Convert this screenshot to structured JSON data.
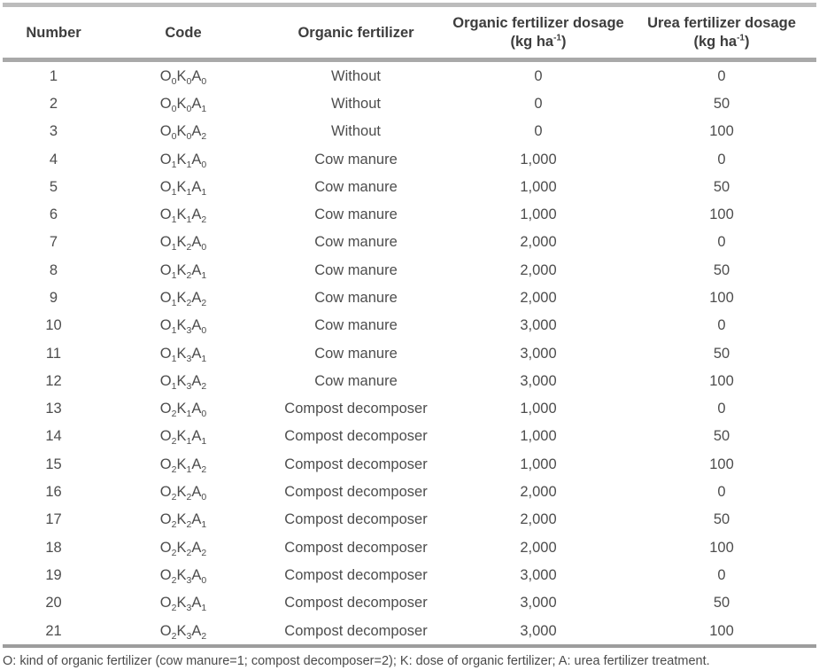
{
  "table": {
    "columns": [
      {
        "label": "Number"
      },
      {
        "label": "Code"
      },
      {
        "label": "Organic fertilizer"
      },
      {
        "label": "Organic fertilizer dosage",
        "unit_pre": "(kg ha",
        "unit_sup": "-1",
        "unit_post": ")"
      },
      {
        "label": "Urea fertilizer dosage",
        "unit_pre": "(kg ha",
        "unit_sup": "-1",
        "unit_post": ")"
      }
    ],
    "rows": [
      {
        "number": "1",
        "code": "O0K0A0",
        "organic_fertilizer": "Without",
        "organic_dosage": "0",
        "urea_dosage": "0"
      },
      {
        "number": "2",
        "code": "O0K0A1",
        "organic_fertilizer": "Without",
        "organic_dosage": "0",
        "urea_dosage": "50"
      },
      {
        "number": "3",
        "code": "O0K0A2",
        "organic_fertilizer": "Without",
        "organic_dosage": "0",
        "urea_dosage": "100"
      },
      {
        "number": "4",
        "code": "O1K1A0",
        "organic_fertilizer": "Cow manure",
        "organic_dosage": "1,000",
        "urea_dosage": "0"
      },
      {
        "number": "5",
        "code": "O1K1A1",
        "organic_fertilizer": "Cow manure",
        "organic_dosage": "1,000",
        "urea_dosage": "50"
      },
      {
        "number": "6",
        "code": "O1K1A2",
        "organic_fertilizer": "Cow manure",
        "organic_dosage": "1,000",
        "urea_dosage": "100"
      },
      {
        "number": "7",
        "code": "O1K2A0",
        "organic_fertilizer": "Cow manure",
        "organic_dosage": "2,000",
        "urea_dosage": "0"
      },
      {
        "number": "8",
        "code": "O1K2A1",
        "organic_fertilizer": "Cow manure",
        "organic_dosage": "2,000",
        "urea_dosage": "50"
      },
      {
        "number": "9",
        "code": "O1K2A2",
        "organic_fertilizer": "Cow manure",
        "organic_dosage": "2,000",
        "urea_dosage": "100"
      },
      {
        "number": "10",
        "code": "O1K3A0",
        "organic_fertilizer": "Cow manure",
        "organic_dosage": "3,000",
        "urea_dosage": "0"
      },
      {
        "number": "11",
        "code": "O1K3A1",
        "organic_fertilizer": "Cow manure",
        "organic_dosage": "3,000",
        "urea_dosage": "50"
      },
      {
        "number": "12",
        "code": "O1K3A2",
        "organic_fertilizer": "Cow manure",
        "organic_dosage": "3,000",
        "urea_dosage": "100"
      },
      {
        "number": "13",
        "code": "O2K1A0",
        "organic_fertilizer": "Compost decomposer",
        "organic_dosage": "1,000",
        "urea_dosage": "0"
      },
      {
        "number": "14",
        "code": "O2K1A1",
        "organic_fertilizer": "Compost decomposer",
        "organic_dosage": "1,000",
        "urea_dosage": "50"
      },
      {
        "number": "15",
        "code": "O2K1A2",
        "organic_fertilizer": "Compost decomposer",
        "organic_dosage": "1,000",
        "urea_dosage": "100"
      },
      {
        "number": "16",
        "code": "O2K2A0",
        "organic_fertilizer": "Compost decomposer",
        "organic_dosage": "2,000",
        "urea_dosage": "0"
      },
      {
        "number": "17",
        "code": "O2K2A1",
        "organic_fertilizer": "Compost decomposer",
        "organic_dosage": "2,000",
        "urea_dosage": "50"
      },
      {
        "number": "18",
        "code": "O2K2A2",
        "organic_fertilizer": "Compost decomposer",
        "organic_dosage": "2,000",
        "urea_dosage": "100"
      },
      {
        "number": "19",
        "code": "O2K3A0",
        "organic_fertilizer": "Compost decomposer",
        "organic_dosage": "3,000",
        "urea_dosage": "0"
      },
      {
        "number": "20",
        "code": "O2K3A1",
        "organic_fertilizer": "Compost decomposer",
        "organic_dosage": "3,000",
        "urea_dosage": "50"
      },
      {
        "number": "21",
        "code": "O2K3A2",
        "organic_fertilizer": "Compost decomposer",
        "organic_dosage": "3,000",
        "urea_dosage": "100"
      }
    ]
  },
  "footnote": "O: kind of organic fertilizer (cow manure=1; compost decomposer=2); K: dose of organic fertilizer; A: urea fertilizer treatment."
}
